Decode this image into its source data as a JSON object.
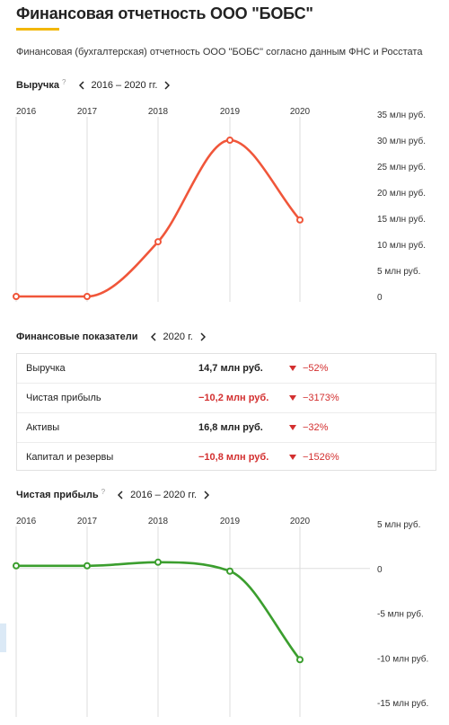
{
  "page": {
    "title": "Финансовая отчетность ООО \"БОБС\"",
    "subtitle": "Финансовая (бухгалтерская) отчетность ООО \"БОБС\" согласно данным ФНС и Росстата",
    "accent_color": "#f2b705"
  },
  "revenue": {
    "label": "Выручка",
    "help": "?",
    "period": "2016 – 2020 гг.",
    "prev_icon": "chevron-left-icon",
    "next_icon": "chevron-right-icon"
  },
  "indicators": {
    "label": "Финансовые показатели",
    "period": "2020 г.",
    "rows": [
      {
        "name": "Выручка",
        "value": "14,7 млн руб.",
        "negative": false,
        "change": "−52%"
      },
      {
        "name": "Чистая прибыль",
        "value": "−10,2 млн руб.",
        "negative": true,
        "change": "−3173%"
      },
      {
        "name": "Активы",
        "value": "16,8 млн руб.",
        "negative": false,
        "change": "−32%"
      },
      {
        "name": "Капитал и резервы",
        "value": "−10,8 млн руб.",
        "negative": true,
        "change": "−1526%"
      }
    ],
    "down_icon": "triangle-down-icon",
    "negative_color": "#d32f2f"
  },
  "net_profit": {
    "label": "Чистая прибыль",
    "help": "?",
    "period": "2016 – 2020 гг."
  },
  "chart_data": [
    {
      "type": "line",
      "x": [
        "2016",
        "2017",
        "2018",
        "2019",
        "2020"
      ],
      "series": [
        {
          "values": [
            0,
            0,
            10.5,
            30,
            14.7
          ]
        }
      ],
      "ylim": [
        0,
        35
      ],
      "yticks": [
        0,
        5,
        10,
        15,
        20,
        25,
        30,
        35
      ],
      "ytick_labels": [
        "0",
        "5 млн руб.",
        "10 млн руб.",
        "15 млн руб.",
        "20 млн руб.",
        "25 млн руб.",
        "30 млн руб.",
        "35 млн руб."
      ],
      "color": "#f0563a",
      "grid": "vertical"
    },
    {
      "type": "line",
      "x": [
        "2016",
        "2017",
        "2018",
        "2019",
        "2020"
      ],
      "series": [
        {
          "values": [
            0.3,
            0.3,
            0.7,
            -0.3,
            -10.2
          ]
        }
      ],
      "ylim": [
        -15,
        5
      ],
      "yticks": [
        -15,
        -10,
        -5,
        0,
        5
      ],
      "ytick_labels": [
        "-15 млн руб.",
        "-10 млн руб.",
        "-5 млн руб.",
        "0",
        "5 млн руб."
      ],
      "color": "#3b9e2e",
      "grid": "vertical"
    }
  ]
}
